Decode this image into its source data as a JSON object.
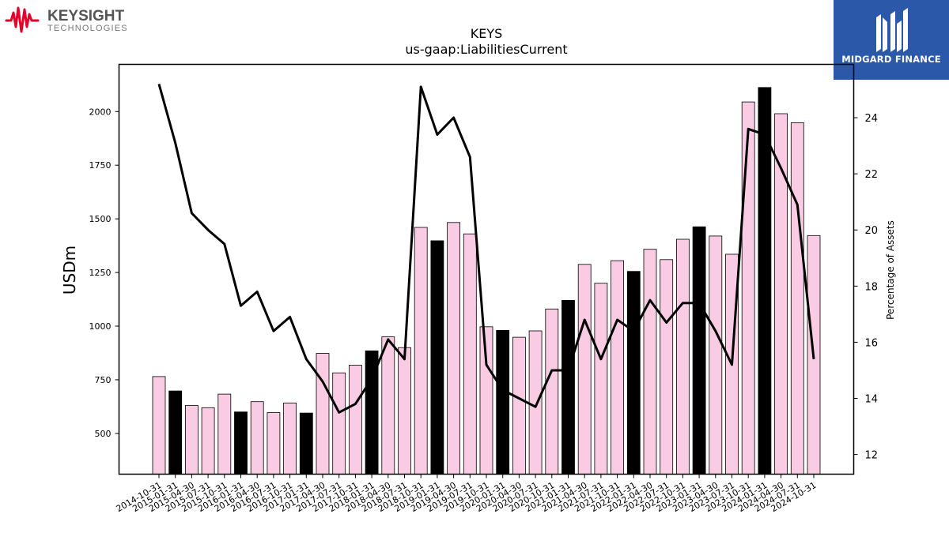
{
  "branding": {
    "left_logo_name": "KEYSIGHT",
    "left_logo_sub": "TECHNOLOGIES",
    "left_logo_color": "#e4002b",
    "right_logo_name": "MIDGARD FINANCE",
    "right_logo_bg": "#2b58a8"
  },
  "chart_data": {
    "type": "bar",
    "title": "KEYS",
    "subtitle": "us-gaap:LiabilitiesCurrent",
    "ylabel": "USDm",
    "ylabel_right": "Percentage of Assets",
    "ylim": [
      310,
      2220
    ],
    "ylim_right": [
      11.3,
      25.9
    ],
    "yticks": [
      500,
      750,
      1000,
      1250,
      1500,
      1750,
      2000
    ],
    "yticks_right": [
      12,
      14,
      16,
      18,
      20,
      22,
      24
    ],
    "categories": [
      "2014-10-31",
      "2015-01-31",
      "2015-04-30",
      "2015-07-31",
      "2015-10-31",
      "2016-01-31",
      "2016-04-30",
      "2016-07-31",
      "2016-10-31",
      "2017-01-31",
      "2017-04-30",
      "2017-07-31",
      "2017-10-31",
      "2018-01-31",
      "2018-04-30",
      "2018-07-31",
      "2018-10-31",
      "2019-01-31",
      "2019-04-30",
      "2019-07-31",
      "2019-10-31",
      "2020-01-31",
      "2020-04-30",
      "2020-07-31",
      "2020-10-31",
      "2021-01-31",
      "2021-04-30",
      "2021-07-31",
      "2021-10-31",
      "2022-01-31",
      "2022-04-30",
      "2022-07-31",
      "2022-10-31",
      "2023-01-31",
      "2023-04-30",
      "2023-07-31",
      "2023-10-31",
      "2024-01-31",
      "2024-04-30",
      "2024-07-31",
      "2024-10-31"
    ],
    "series": [
      {
        "type": "bar",
        "values": [
          765,
          698,
          630,
          620,
          683,
          600,
          648,
          597,
          642,
          595,
          873,
          782,
          818,
          885,
          950,
          900,
          1460,
          1398,
          1483,
          1430,
          997,
          980,
          948,
          978,
          1080,
          1120,
          1288,
          1200,
          1305,
          1255,
          1358,
          1310,
          1405,
          1463,
          1420,
          1335,
          2045,
          2112,
          1990,
          1948,
          1422
        ],
        "highlighted": [
          false,
          true,
          false,
          false,
          false,
          true,
          false,
          false,
          false,
          true,
          false,
          false,
          false,
          true,
          false,
          false,
          false,
          true,
          false,
          false,
          false,
          true,
          false,
          false,
          false,
          true,
          false,
          false,
          false,
          true,
          false,
          false,
          false,
          true,
          false,
          false,
          false,
          true,
          false,
          false,
          false
        ],
        "color": "#f9cce3",
        "highlight_color": "#000000"
      },
      {
        "type": "line",
        "axis": "right",
        "values": [
          25.2,
          23.1,
          20.6,
          20.0,
          19.5,
          17.3,
          17.8,
          16.4,
          16.9,
          15.4,
          14.6,
          13.5,
          13.8,
          14.7,
          16.1,
          15.4,
          25.1,
          23.4,
          24.0,
          22.6,
          15.2,
          14.3,
          14.0,
          13.7,
          15.0,
          15.0,
          16.8,
          15.4,
          16.8,
          16.4,
          17.5,
          16.7,
          17.4,
          17.4,
          16.4,
          15.2,
          23.6,
          23.4,
          22.2,
          20.9,
          15.4
        ],
        "color": "#000000"
      }
    ],
    "grid": false
  }
}
